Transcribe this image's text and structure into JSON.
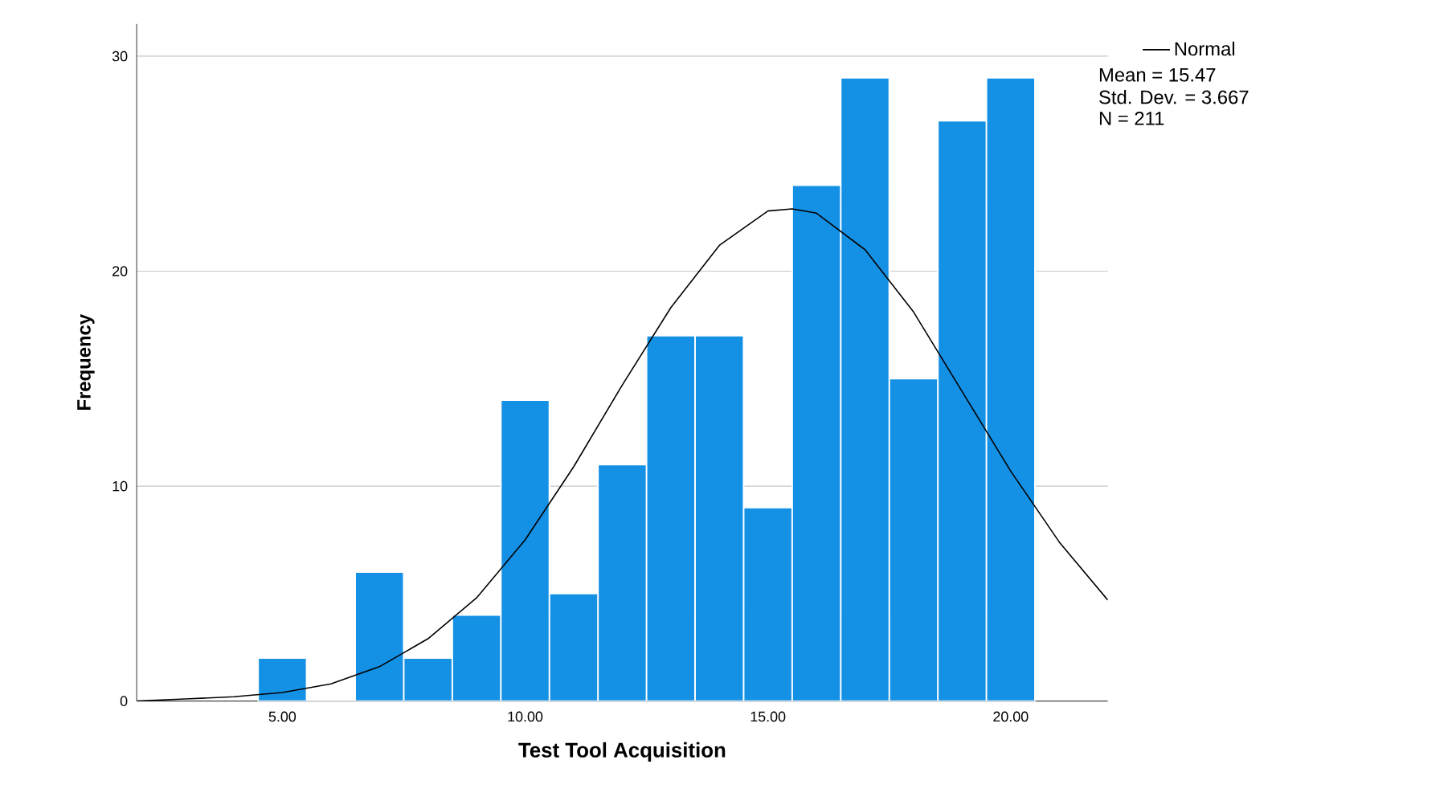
{
  "chart_data": {
    "type": "histogram",
    "xlabel": "Test Tool Acquisition",
    "ylabel": "Frequency",
    "bins": [
      4.5,
      5.5,
      6.5,
      7.5,
      8.5,
      9.5,
      10.5,
      11.5,
      12.5,
      13.5,
      14.5,
      15.5,
      16.5,
      17.5,
      18.5,
      19.5,
      20.5
    ],
    "values": [
      2,
      0,
      6,
      2,
      4,
      14,
      5,
      11,
      17,
      17,
      9,
      24,
      29,
      15,
      27,
      29
    ],
    "color": "#1490e4",
    "series": [
      {
        "name": "Normal",
        "type": "line",
        "color": "#000000",
        "x": [
          2,
          3,
          4,
          5,
          6,
          7,
          8,
          9,
          10,
          11,
          12,
          13,
          14,
          15,
          15.5,
          16,
          17,
          18,
          19,
          20,
          21,
          22
        ],
        "values": [
          0.0,
          0.1,
          0.2,
          0.4,
          0.8,
          1.6,
          2.9,
          4.8,
          7.5,
          10.9,
          14.7,
          18.3,
          21.2,
          22.8,
          22.9,
          22.7,
          21.0,
          18.1,
          14.4,
          10.7,
          7.4,
          4.7
        ]
      }
    ],
    "annotations": [
      "Mean = 15.47",
      "Std. Dev. = 3.667",
      "N = 211"
    ],
    "xlim": [
      2,
      22
    ],
    "ylim": [
      0,
      31.5
    ],
    "xticks": [
      {
        "value": 5,
        "label": "5.00"
      },
      {
        "value": 10,
        "label": "10.00"
      },
      {
        "value": 15,
        "label": "15.00"
      },
      {
        "value": 20,
        "label": "20.00"
      }
    ],
    "yticks": [
      0,
      10,
      20,
      30
    ],
    "grid": "y",
    "legend": "top right",
    "marker": "none",
    "line_style": "solid"
  }
}
